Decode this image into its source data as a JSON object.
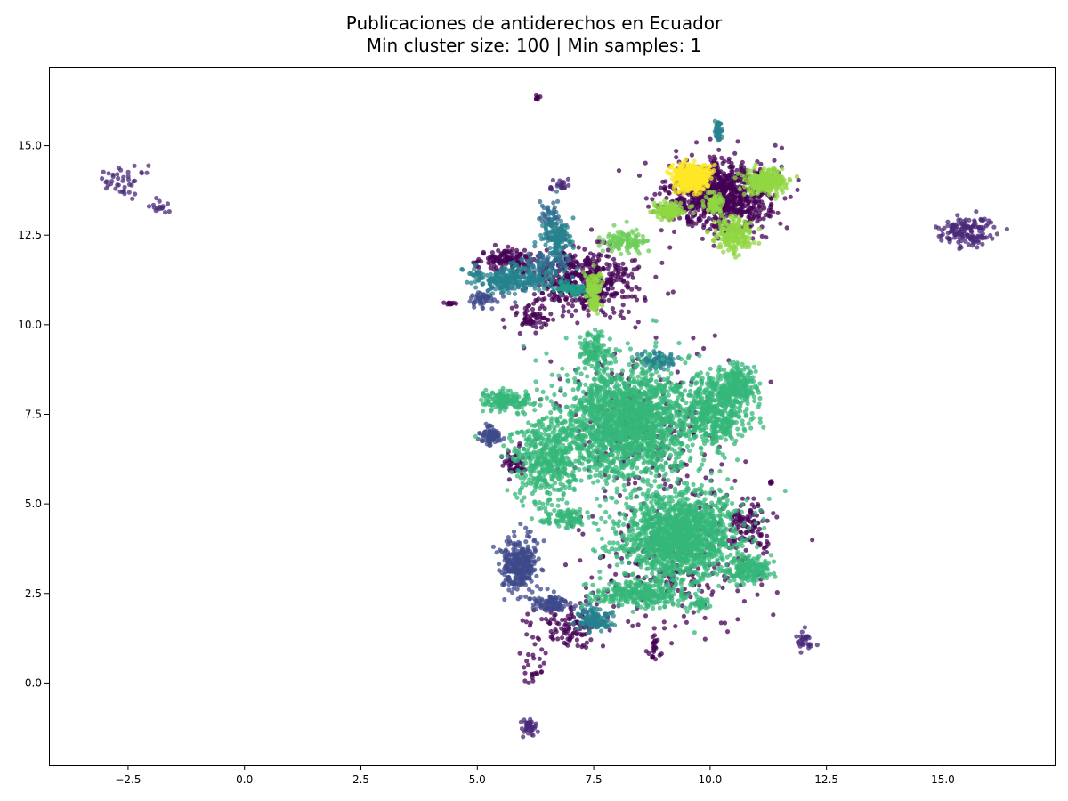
{
  "chart_data": {
    "type": "scatter",
    "title_lines": [
      "Publicaciones de antiderechos en Ecuador",
      "Min cluster size: 100 | Min samples: 1"
    ],
    "xlabel": "",
    "ylabel": "",
    "xlim": [
      -4.2,
      17.4
    ],
    "ylim": [
      -2.3,
      17.2
    ],
    "xticks": [
      -2.5,
      0.0,
      2.5,
      5.0,
      7.5,
      10.0,
      12.5,
      15.0
    ],
    "xtick_labels": [
      "−2.5",
      "0.0",
      "2.5",
      "5.0",
      "7.5",
      "10.0",
      "12.5",
      "15.0"
    ],
    "yticks": [
      0.0,
      2.5,
      5.0,
      7.5,
      10.0,
      12.5,
      15.0
    ],
    "ytick_labels": [
      "0.0",
      "2.5",
      "5.0",
      "7.5",
      "10.0",
      "12.5",
      "15.0"
    ],
    "grid": false,
    "legend": "none",
    "point_opacity": 0.75,
    "colormap": "viridis",
    "clusters": [
      {
        "color": "#440154",
        "role": "noise",
        "regions": [
          {
            "cx": 10.2,
            "cy": 13.6,
            "sx": 0.9,
            "sy": 0.8,
            "n": 900
          },
          {
            "cx": 7.3,
            "cy": 11.3,
            "sx": 0.9,
            "sy": 0.8,
            "n": 450
          },
          {
            "cx": 5.6,
            "cy": 11.8,
            "sx": 0.5,
            "sy": 0.3,
            "n": 120
          },
          {
            "cx": 6.2,
            "cy": 10.2,
            "sx": 0.35,
            "sy": 0.4,
            "n": 60
          },
          {
            "cx": 8.6,
            "cy": 7.0,
            "sx": 1.6,
            "sy": 2.2,
            "n": 280
          },
          {
            "cx": 9.2,
            "cy": 3.2,
            "sx": 1.5,
            "sy": 1.3,
            "n": 200
          },
          {
            "cx": 7.0,
            "cy": 1.6,
            "sx": 0.7,
            "sy": 0.5,
            "n": 120
          },
          {
            "cx": 10.8,
            "cy": 4.4,
            "sx": 0.4,
            "sy": 0.6,
            "n": 90
          },
          {
            "cx": 5.8,
            "cy": 6.1,
            "sx": 0.25,
            "sy": 0.3,
            "n": 50
          },
          {
            "cx": 8.8,
            "cy": 1.0,
            "sx": 0.12,
            "sy": 0.3,
            "n": 25
          },
          {
            "cx": 6.2,
            "cy": 0.5,
            "sx": 0.25,
            "sy": 0.5,
            "n": 25
          },
          {
            "cx": 6.3,
            "cy": 16.35,
            "sx": 0.05,
            "sy": 0.05,
            "n": 8
          },
          {
            "cx": 4.4,
            "cy": 10.6,
            "sx": 0.12,
            "sy": 0.05,
            "n": 12
          },
          {
            "cx": 11.3,
            "cy": 5.6,
            "sx": 0.05,
            "sy": 0.05,
            "n": 5
          },
          {
            "cx": 11.2,
            "cy": 3.8,
            "sx": 0.15,
            "sy": 0.1,
            "n": 10
          }
        ]
      },
      {
        "color": "#482878",
        "role": "cluster",
        "regions": [
          {
            "cx": -2.6,
            "cy": 14.0,
            "sx": 0.5,
            "sy": 0.4,
            "n": 40
          },
          {
            "cx": -1.8,
            "cy": 13.3,
            "sx": 0.2,
            "sy": 0.15,
            "n": 15
          },
          {
            "cx": 15.5,
            "cy": 12.6,
            "sx": 0.5,
            "sy": 0.35,
            "n": 140
          },
          {
            "cx": 6.1,
            "cy": -1.2,
            "sx": 0.12,
            "sy": 0.2,
            "n": 40
          },
          {
            "cx": 12.0,
            "cy": 1.1,
            "sx": 0.2,
            "sy": 0.2,
            "n": 30
          },
          {
            "cx": 6.8,
            "cy": 13.9,
            "sx": 0.2,
            "sy": 0.15,
            "n": 20
          }
        ]
      },
      {
        "color": "#3e4989",
        "role": "cluster",
        "regions": [
          {
            "cx": 5.9,
            "cy": 3.3,
            "sx": 0.3,
            "sy": 0.6,
            "n": 320
          },
          {
            "cx": 5.3,
            "cy": 6.9,
            "sx": 0.2,
            "sy": 0.2,
            "n": 80
          },
          {
            "cx": 5.1,
            "cy": 10.7,
            "sx": 0.3,
            "sy": 0.2,
            "n": 50
          },
          {
            "cx": 6.6,
            "cy": 2.2,
            "sx": 0.3,
            "sy": 0.2,
            "n": 80
          }
        ]
      },
      {
        "color": "#31688e",
        "role": "cluster",
        "regions": [
          {
            "cx": 6.5,
            "cy": 11.7,
            "sx": 0.4,
            "sy": 0.3,
            "n": 80
          },
          {
            "cx": 6.6,
            "cy": 13.0,
            "sx": 0.2,
            "sy": 0.4,
            "n": 50
          }
        ]
      },
      {
        "color": "#26828e",
        "role": "cluster",
        "regions": [
          {
            "cx": 5.8,
            "cy": 11.3,
            "sx": 0.8,
            "sy": 0.3,
            "n": 280
          },
          {
            "cx": 6.7,
            "cy": 12.4,
            "sx": 0.25,
            "sy": 0.4,
            "n": 120
          },
          {
            "cx": 10.2,
            "cy": 15.4,
            "sx": 0.1,
            "sy": 0.25,
            "n": 40
          },
          {
            "cx": 8.9,
            "cy": 9.0,
            "sx": 0.3,
            "sy": 0.2,
            "n": 80
          },
          {
            "cx": 7.5,
            "cy": 1.8,
            "sx": 0.3,
            "sy": 0.3,
            "n": 120
          }
        ]
      },
      {
        "color": "#1f9e89",
        "role": "cluster",
        "regions": [
          {
            "cx": 7.0,
            "cy": 11.0,
            "sx": 0.3,
            "sy": 0.15,
            "n": 60
          }
        ]
      },
      {
        "color": "#35b779",
        "role": "cluster",
        "regions": [
          {
            "cx": 8.2,
            "cy": 7.3,
            "sx": 1.2,
            "sy": 1.3,
            "n": 1800
          },
          {
            "cx": 9.3,
            "cy": 4.1,
            "sx": 1.0,
            "sy": 1.0,
            "n": 1500
          },
          {
            "cx": 10.1,
            "cy": 7.6,
            "sx": 0.6,
            "sy": 0.8,
            "n": 450
          },
          {
            "cx": 6.5,
            "cy": 6.2,
            "sx": 0.6,
            "sy": 1.0,
            "n": 450
          },
          {
            "cx": 5.6,
            "cy": 7.9,
            "sx": 0.4,
            "sy": 0.25,
            "n": 150
          },
          {
            "cx": 10.6,
            "cy": 8.3,
            "sx": 0.35,
            "sy": 0.4,
            "n": 220
          },
          {
            "cx": 8.5,
            "cy": 2.5,
            "sx": 0.8,
            "sy": 0.3,
            "n": 300
          },
          {
            "cx": 10.8,
            "cy": 3.2,
            "sx": 0.4,
            "sy": 0.3,
            "n": 180
          },
          {
            "cx": 9.8,
            "cy": 2.2,
            "sx": 0.2,
            "sy": 0.15,
            "n": 40
          },
          {
            "cx": 7.5,
            "cy": 9.3,
            "sx": 0.3,
            "sy": 0.4,
            "n": 120
          },
          {
            "cx": 6.9,
            "cy": 4.6,
            "sx": 0.4,
            "sy": 0.2,
            "n": 100
          }
        ]
      },
      {
        "color": "#6ece58",
        "role": "cluster",
        "regions": [
          {
            "cx": 8.2,
            "cy": 12.3,
            "sx": 0.4,
            "sy": 0.25,
            "n": 120
          }
        ]
      },
      {
        "color": "#90d743",
        "role": "cluster",
        "regions": [
          {
            "cx": 11.2,
            "cy": 14.0,
            "sx": 0.35,
            "sy": 0.25,
            "n": 260
          },
          {
            "cx": 10.5,
            "cy": 12.5,
            "sx": 0.35,
            "sy": 0.4,
            "n": 180
          },
          {
            "cx": 9.1,
            "cy": 13.2,
            "sx": 0.3,
            "sy": 0.2,
            "n": 120
          },
          {
            "cx": 10.1,
            "cy": 13.4,
            "sx": 0.15,
            "sy": 0.25,
            "n": 80
          },
          {
            "cx": 7.5,
            "cy": 11.1,
            "sx": 0.15,
            "sy": 0.3,
            "n": 80
          },
          {
            "cx": 7.5,
            "cy": 10.6,
            "sx": 0.1,
            "sy": 0.2,
            "n": 40
          }
        ]
      },
      {
        "color": "#fde725",
        "role": "cluster",
        "regions": [
          {
            "cx": 9.6,
            "cy": 14.1,
            "sx": 0.3,
            "sy": 0.3,
            "n": 500
          }
        ]
      }
    ]
  }
}
